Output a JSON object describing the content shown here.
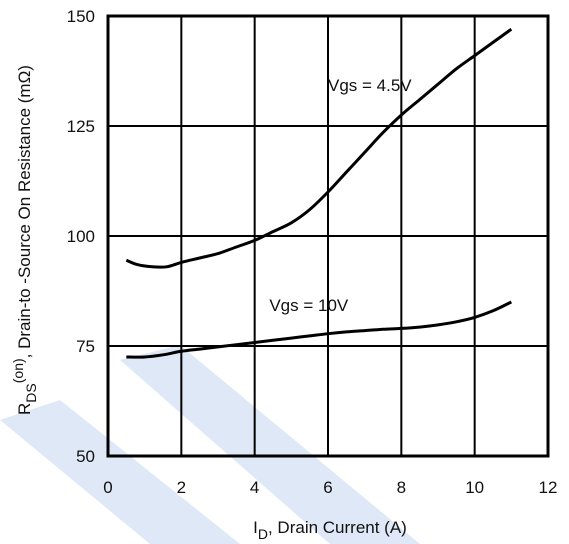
{
  "chart_data": {
    "type": "line",
    "xlabel": {
      "main": "I",
      "sub": "D",
      "rest": ", Drain Current (A)"
    },
    "ylabel": {
      "main": "R",
      "sub": "DS",
      "sup": "(on)",
      "rest": ",  Drain-to -Source On Resistance (mΩ)"
    },
    "xlim": [
      0,
      12
    ],
    "ylim": [
      50,
      150
    ],
    "x_ticks": [
      0,
      2,
      4,
      6,
      8,
      10,
      12
    ],
    "x_tick_labels": [
      "0",
      "2",
      "4",
      "6",
      "8",
      "10",
      "12"
    ],
    "y_ticks": [
      50,
      75,
      100,
      125,
      150
    ],
    "y_tick_labels": [
      "50",
      "75",
      "100",
      "125",
      "150"
    ],
    "grid": true,
    "legend": "none",
    "watermark_color": "#c9d9f2",
    "series": [
      {
        "label": "Vgs = 4.5V",
        "label_at": [
          6.0,
          133
        ],
        "color": "#000000",
        "points": [
          [
            0.5,
            94.5
          ],
          [
            0.8,
            93.5
          ],
          [
            1.2,
            93.0
          ],
          [
            1.6,
            93.0
          ],
          [
            2.0,
            94.0
          ],
          [
            2.5,
            95.0
          ],
          [
            3.0,
            96.0
          ],
          [
            3.5,
            97.5
          ],
          [
            4.0,
            99.0
          ],
          [
            4.5,
            101.0
          ],
          [
            5.0,
            103.0
          ],
          [
            5.5,
            106.0
          ],
          [
            6.0,
            110.0
          ],
          [
            6.5,
            114.5
          ],
          [
            7.0,
            119.0
          ],
          [
            7.5,
            123.5
          ],
          [
            8.0,
            127.5
          ],
          [
            8.5,
            131.0
          ],
          [
            9.0,
            134.5
          ],
          [
            9.5,
            138.0
          ],
          [
            10.0,
            141.0
          ],
          [
            10.5,
            144.0
          ],
          [
            11.0,
            147.0
          ]
        ]
      },
      {
        "label": "Vgs = 10V",
        "label_at": [
          4.4,
          83
        ],
        "color": "#000000",
        "points": [
          [
            0.5,
            72.5
          ],
          [
            1.0,
            72.5
          ],
          [
            1.5,
            73.0
          ],
          [
            2.0,
            73.8
          ],
          [
            2.5,
            74.3
          ],
          [
            3.0,
            74.8
          ],
          [
            3.5,
            75.3
          ],
          [
            4.0,
            75.8
          ],
          [
            4.5,
            76.3
          ],
          [
            5.0,
            76.8
          ],
          [
            5.5,
            77.3
          ],
          [
            6.0,
            77.8
          ],
          [
            6.5,
            78.2
          ],
          [
            7.0,
            78.5
          ],
          [
            7.5,
            78.8
          ],
          [
            8.0,
            79.0
          ],
          [
            8.5,
            79.3
          ],
          [
            9.0,
            79.8
          ],
          [
            9.5,
            80.5
          ],
          [
            10.0,
            81.5
          ],
          [
            10.5,
            83.0
          ],
          [
            11.0,
            85.0
          ]
        ]
      }
    ]
  }
}
